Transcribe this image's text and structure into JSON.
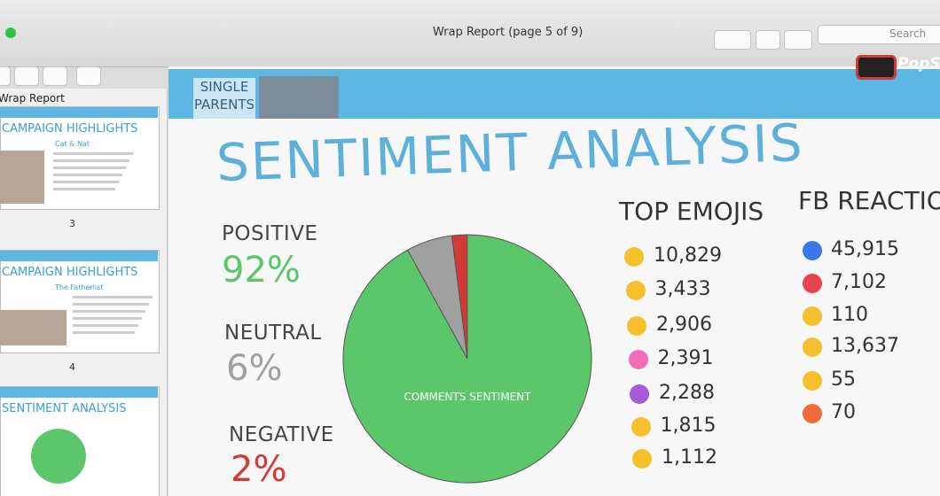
{
  "window": {
    "title": "Wrap Report (page 5 of 9)",
    "search": "Search"
  },
  "sidebar": {
    "title": "Wrap Report",
    "thumbnails": [
      {
        "title": "CAMPAIGN HIGHLIGHTS",
        "subtitle": "Cat & Nat",
        "page": "3"
      },
      {
        "title": "CAMPAIGN HIGHLIGHTS",
        "subtitle": "The Fatherlist",
        "page": "4"
      },
      {
        "title": "SENTIMENT ANALYSIS"
      }
    ]
  },
  "slide": {
    "brand": "PopSh",
    "show": [
      "SINGLE",
      "PARENTS"
    ],
    "title": "SENTIMENT ANALYSIS",
    "top_emojis": {
      "title": "TOP EMOJIS",
      "counts": [
        "10,829",
        "3,433",
        "2,906",
        "2,391",
        "2,288",
        "1,815",
        "1,112"
      ]
    },
    "fb_reactions": {
      "title": "FB REACTIONS",
      "counts": [
        "45,915",
        "7,102",
        "110",
        "13,637",
        "55",
        "70"
      ]
    }
  },
  "chart_data": {
    "type": "pie",
    "label": "COMMENTS SENTIMENT",
    "categories": [
      "POSITIVE",
      "NEUTRAL",
      "NEGATIVE"
    ],
    "values": [
      92,
      6,
      2
    ],
    "value_labels": [
      "92%",
      "6%",
      "2%"
    ],
    "colors": [
      "#5cc66b",
      "#a0a0a0",
      "#d33a35"
    ]
  }
}
